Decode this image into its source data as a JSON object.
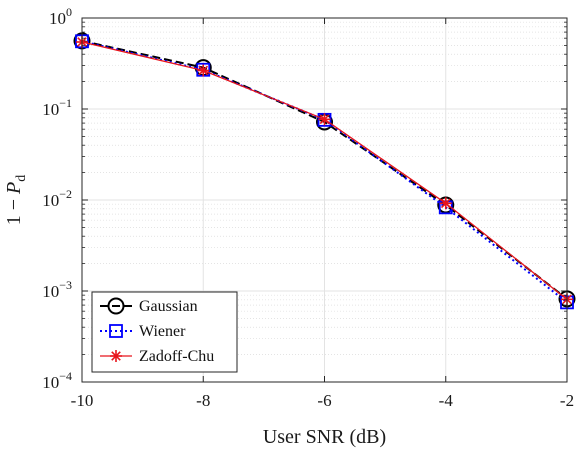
{
  "chart_data": {
    "type": "line",
    "xlabel": "User SNR (dB)",
    "ylabel": {
      "prefix": "1 − ",
      "var": "P",
      "sub": "d"
    },
    "xlim": [
      -10,
      -2
    ],
    "ylim": [
      0.0001,
      1
    ],
    "yscale": "log",
    "grid": true,
    "legend_position": "bottom-left",
    "x_ticks": [
      {
        "value": -10,
        "label": "-10"
      },
      {
        "value": -8,
        "label": "-8"
      },
      {
        "value": -6,
        "label": "-6"
      },
      {
        "value": -4,
        "label": "-4"
      },
      {
        "value": -2,
        "label": "-2"
      }
    ],
    "y_ticks": [
      {
        "value": 1,
        "base": "10",
        "exp": "0"
      },
      {
        "value": 0.1,
        "base": "10",
        "exp": "−1"
      },
      {
        "value": 0.01,
        "base": "10",
        "exp": "−2"
      },
      {
        "value": 0.001,
        "base": "10",
        "exp": "−3"
      },
      {
        "value": 0.0001,
        "base": "10",
        "exp": "−4"
      }
    ],
    "x": [
      -10,
      -8,
      -6,
      -4,
      -2
    ],
    "series": [
      {
        "name": "Gaussian",
        "values": [
          0.56,
          0.285,
          0.072,
          0.0088,
          0.00082
        ],
        "color": "#000000",
        "dash": "8,4",
        "marker": "circle"
      },
      {
        "name": "Wiener",
        "values": [
          0.555,
          0.27,
          0.076,
          0.0083,
          0.00075
        ],
        "color": "#0000ff",
        "dash": "2,3",
        "marker": "square"
      },
      {
        "name": "Zadoff-Chu",
        "values": [
          0.545,
          0.265,
          0.077,
          0.0092,
          0.00081
        ],
        "color": "#e8141c",
        "dash": "",
        "marker": "asterisk"
      }
    ]
  }
}
